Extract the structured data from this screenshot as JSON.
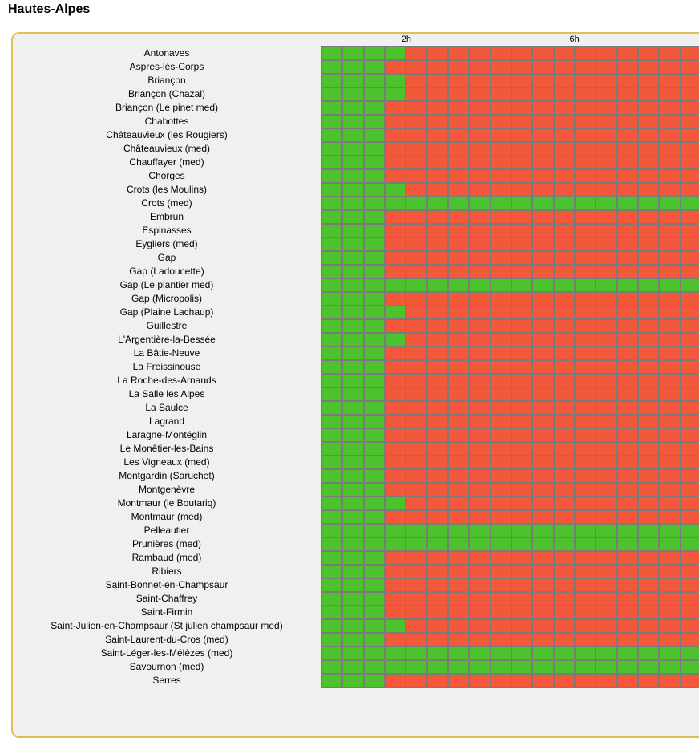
{
  "chart_data": {
    "type": "heatmap",
    "title": "Hautes-Alpes",
    "columns": 18,
    "x_tick_labels": [
      {
        "label": "2h",
        "col": 4
      },
      {
        "label": "6h",
        "col": 12
      }
    ],
    "legend": {
      "green_means": "available",
      "red_means": "unavailable"
    },
    "rows": [
      {
        "name": "Antonaves",
        "green_cols": 4
      },
      {
        "name": "Aspres-lès-Corps",
        "green_cols": 3
      },
      {
        "name": "Briançon",
        "green_cols": 4
      },
      {
        "name": "Briançon (Chazal)",
        "green_cols": 4
      },
      {
        "name": "Briançon (Le pinet med)",
        "green_cols": 3
      },
      {
        "name": "Chabottes",
        "green_cols": 3
      },
      {
        "name": "Châteauvieux (les Rougiers)",
        "green_cols": 3
      },
      {
        "name": "Châteauvieux (med)",
        "green_cols": 3
      },
      {
        "name": "Chauffayer (med)",
        "green_cols": 3
      },
      {
        "name": "Chorges",
        "green_cols": 3
      },
      {
        "name": "Crots (les Moulins)",
        "green_cols": 4
      },
      {
        "name": "Crots (med)",
        "green_cols": 18
      },
      {
        "name": "Embrun",
        "green_cols": 3
      },
      {
        "name": "Espinasses",
        "green_cols": 3
      },
      {
        "name": "Eygliers (med)",
        "green_cols": 3
      },
      {
        "name": "Gap",
        "green_cols": 3
      },
      {
        "name": "Gap (Ladoucette)",
        "green_cols": 3
      },
      {
        "name": "Gap (Le plantier med)",
        "green_cols": 18
      },
      {
        "name": "Gap (Micropolis)",
        "green_cols": 3
      },
      {
        "name": "Gap (Plaine Lachaup)",
        "green_cols": 4
      },
      {
        "name": "Guillestre",
        "green_cols": 3
      },
      {
        "name": "L'Argentière-la-Bessée",
        "green_cols": 4
      },
      {
        "name": "La Bâtie-Neuve",
        "green_cols": 3
      },
      {
        "name": "La Freissinouse",
        "green_cols": 3
      },
      {
        "name": "La Roche-des-Arnauds",
        "green_cols": 3
      },
      {
        "name": "La Salle les Alpes",
        "green_cols": 3
      },
      {
        "name": "La Saulce",
        "green_cols": 3
      },
      {
        "name": "Lagrand",
        "green_cols": 3
      },
      {
        "name": "Laragne-Montéglin",
        "green_cols": 3
      },
      {
        "name": "Le Monêtier-les-Bains",
        "green_cols": 3
      },
      {
        "name": "Les Vigneaux (med)",
        "green_cols": 3
      },
      {
        "name": "Montgardin (Saruchet)",
        "green_cols": 3
      },
      {
        "name": "Montgenèvre",
        "green_cols": 3
      },
      {
        "name": "Montmaur (le Boutariq)",
        "green_cols": 4
      },
      {
        "name": "Montmaur (med)",
        "green_cols": 3
      },
      {
        "name": "Pelleautier",
        "green_cols": 18
      },
      {
        "name": "Prunières (med)",
        "green_cols": 18
      },
      {
        "name": "Rambaud (med)",
        "green_cols": 3
      },
      {
        "name": "Ribiers",
        "green_cols": 3
      },
      {
        "name": "Saint-Bonnet-en-Champsaur",
        "green_cols": 3
      },
      {
        "name": "Saint-Chaffrey",
        "green_cols": 3
      },
      {
        "name": "Saint-Firmin",
        "green_cols": 3
      },
      {
        "name": "Saint-Julien-en-Champsaur (St julien champsaur med)",
        "green_cols": 4
      },
      {
        "name": "Saint-Laurent-du-Cros (med)",
        "green_cols": 3
      },
      {
        "name": "Saint-Léger-les-Mélèzes (med)",
        "green_cols": 18
      },
      {
        "name": "Savournon (med)",
        "green_cols": 18
      },
      {
        "name": "Serres",
        "green_cols": 3
      }
    ]
  },
  "colors": {
    "available_green": "#4cc32c",
    "unavailable_red": "#f2593a",
    "grid_border_gray": "#7b7b7b",
    "panel_border_gold": "#e3bd4f",
    "panel_background": "#f0f0f0"
  }
}
